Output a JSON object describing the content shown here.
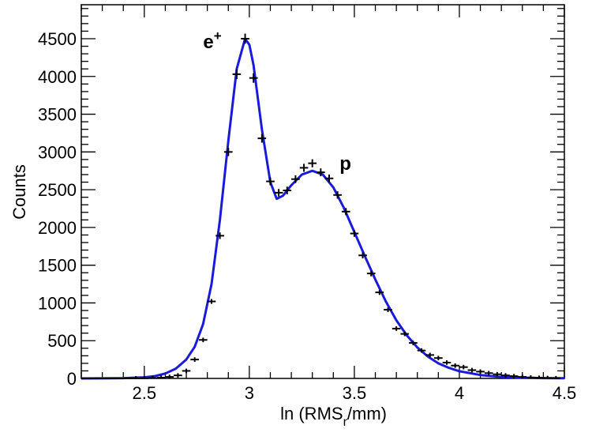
{
  "chart_data": {
    "type": "scatter",
    "title": "",
    "xlabel": "ln (RMS",
    "xlabel_sub": "r",
    "xlabel_tail": "/mm)",
    "ylabel": "Counts",
    "xlim": [
      2.2,
      4.5
    ],
    "ylim": [
      0,
      4700
    ],
    "xticks": [
      "2.5",
      "3",
      "3.5",
      "4",
      "4.5"
    ],
    "yticks": [
      "0",
      "500",
      "1000",
      "1500",
      "2000",
      "2500",
      "3000",
      "3500",
      "4000",
      "4500"
    ],
    "annotations": [
      {
        "text": "e",
        "sup": "+",
        "x": 2.78,
        "y": 4480
      },
      {
        "text": "p",
        "x": 3.43,
        "y": 2870
      }
    ],
    "bin_half_width": 0.02,
    "series": [
      {
        "name": "data",
        "color": "#000000",
        "x": [
          2.22,
          2.26,
          2.3,
          2.34,
          2.38,
          2.42,
          2.46,
          2.5,
          2.54,
          2.58,
          2.62,
          2.66,
          2.7,
          2.74,
          2.78,
          2.82,
          2.86,
          2.9,
          2.94,
          2.98,
          3.02,
          3.06,
          3.1,
          3.14,
          3.18,
          3.22,
          3.26,
          3.3,
          3.34,
          3.38,
          3.42,
          3.46,
          3.5,
          3.54,
          3.58,
          3.62,
          3.66,
          3.7,
          3.74,
          3.78,
          3.82,
          3.86,
          3.9,
          3.94,
          3.98,
          4.02,
          4.06,
          4.1,
          4.14,
          4.18,
          4.22,
          4.26,
          4.3,
          4.34,
          4.38,
          4.42,
          4.46
        ],
        "y": [
          0,
          0,
          0,
          0,
          0,
          0,
          1,
          2,
          5,
          10,
          20,
          40,
          100,
          250,
          510,
          1020,
          1890,
          3000,
          4030,
          4500,
          3980,
          3180,
          2610,
          2460,
          2490,
          2640,
          2790,
          2850,
          2730,
          2650,
          2430,
          2210,
          1920,
          1630,
          1390,
          1140,
          910,
          660,
          590,
          470,
          370,
          310,
          270,
          210,
          170,
          150,
          110,
          90,
          70,
          55,
          40,
          30,
          20,
          12,
          8,
          5,
          3
        ]
      },
      {
        "name": "fit",
        "color": "#1a1adc",
        "x": [
          2.2,
          2.3,
          2.4,
          2.5,
          2.55,
          2.6,
          2.65,
          2.7,
          2.74,
          2.78,
          2.82,
          2.86,
          2.9,
          2.94,
          2.98,
          3.0,
          3.02,
          3.06,
          3.1,
          3.13,
          3.16,
          3.2,
          3.25,
          3.3,
          3.35,
          3.4,
          3.45,
          3.5,
          3.55,
          3.6,
          3.65,
          3.7,
          3.75,
          3.8,
          3.85,
          3.9,
          3.95,
          4.0,
          4.1,
          4.2,
          4.3,
          4.4,
          4.5
        ],
        "y": [
          0,
          1,
          4,
          15,
          30,
          65,
          130,
          250,
          420,
          720,
          1250,
          2100,
          3150,
          4100,
          4500,
          4420,
          4150,
          3300,
          2600,
          2380,
          2420,
          2560,
          2700,
          2750,
          2700,
          2530,
          2260,
          1940,
          1620,
          1310,
          1020,
          770,
          570,
          410,
          290,
          200,
          140,
          95,
          45,
          20,
          9,
          4,
          2
        ]
      }
    ]
  }
}
